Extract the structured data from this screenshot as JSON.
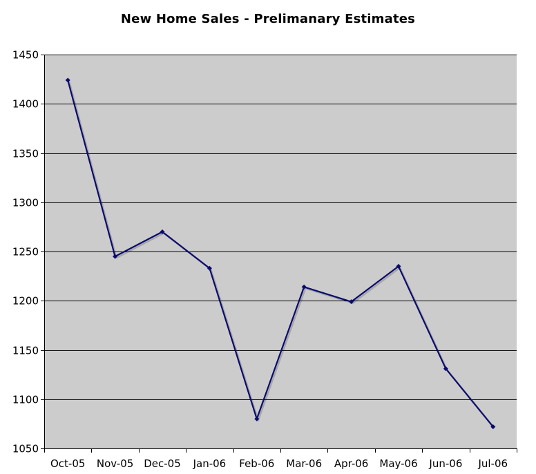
{
  "chart_data": {
    "type": "line",
    "title": "New Home Sales - Prelimanary Estimates",
    "xlabel": "",
    "ylabel": "",
    "categories": [
      "Oct-05",
      "Nov-05",
      "Dec-05",
      "Jan-06",
      "Feb-06",
      "Mar-06",
      "Apr-06",
      "May-06",
      "Jun-06",
      "Jul-06"
    ],
    "series": [
      {
        "values": [
          1424,
          1245,
          1270,
          1233,
          1080,
          1214,
          1199,
          1235,
          1131,
          1072
        ],
        "color": "#0b0b6e",
        "marker": "diamond"
      }
    ],
    "ylim": [
      1050,
      1450
    ],
    "yticks": [
      1050,
      1100,
      1150,
      1200,
      1250,
      1300,
      1350,
      1400,
      1450
    ],
    "grid": true,
    "legend": "none",
    "plot_background": "#cccccc",
    "gridline_color": "#000000"
  }
}
